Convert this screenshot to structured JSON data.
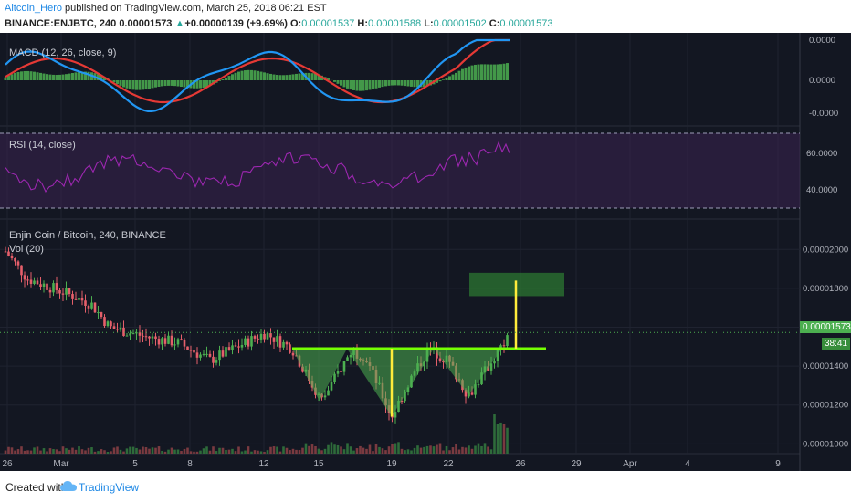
{
  "header": {
    "author": "Altcoin_Hero",
    "published_text": " published on TradingView.com, March 25, 2018 06:21 EST",
    "symbol": "BINANCE:ENJBTC, 240",
    "last": "0.00001573",
    "change_arrow": "▲",
    "change": "+0.00000139 (+9.69%)",
    "o_label": "O:",
    "o": "0.00001537",
    "h_label": "H:",
    "h": "0.00001588",
    "l_label": "L:",
    "l": "0.00001502",
    "c_label": "C:",
    "c": "0.00001573"
  },
  "panes": {
    "macd_label": "MACD (12, 26, close, 9)",
    "rsi_label": "RSI (14, close)",
    "main_label": "Enjin Coin / Bitcoin, 240, BINANCE",
    "vol_label": "Vol (20)"
  },
  "macd_axis": [
    "0.0000",
    "0.0000",
    "-0.0000"
  ],
  "rsi_axis": [
    "60.0000",
    "40.0000"
  ],
  "price_axis": [
    "0.00002000",
    "0.00001800",
    "0.00001600",
    "0.00001400",
    "0.00001200",
    "0.00001000"
  ],
  "price_tags": {
    "last": "0.00001573",
    "countdown": "38:41"
  },
  "x_labels": [
    "26",
    "Mar",
    "5",
    "8",
    "12",
    "15",
    "19",
    "22",
    "26",
    "29",
    "Apr",
    "4",
    "9"
  ],
  "footer": {
    "created_with": "Created with",
    "brand": "TradingView"
  },
  "colors": {
    "background": "#131722",
    "macd_line": "#2196f3",
    "signal_line": "#e53935",
    "histogram": "#4caf50",
    "rsi_line": "#9c27b0",
    "rsi_band": "#3a2350",
    "up_candle": "#4caf50",
    "down_candle": "#e55f6a",
    "pattern_fill": "#4caf50",
    "neckline": "#76ff03",
    "target_line": "#ffeb3b",
    "target_box": "#2e7d32"
  },
  "chart_data": {
    "type": "candlestick",
    "symbol": "ENJBTC",
    "exchange": "BINANCE",
    "timeframe": "240",
    "ylim": [
      9.5e-06,
      2.1e-05
    ],
    "annotations": {
      "pattern": "inverse head and shoulders",
      "neckline": 1.49e-05,
      "left_shoulder_low": 1.22e-05,
      "head_low": 1.14e-05,
      "right_shoulder_low": 1.25e-05,
      "target": 1.84e-05
    }
  }
}
